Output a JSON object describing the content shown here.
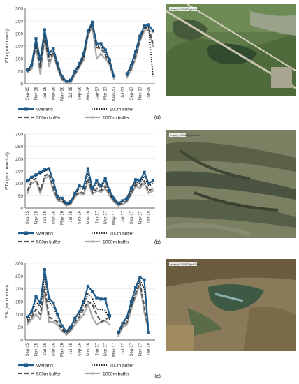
{
  "colors": {
    "wetland": "#1f5b8a",
    "buffer100": "#111111",
    "buffer500": "#555555",
    "buffer1000": "#a8a8a8",
    "axis": "#333333",
    "grid": "#e3e3e3"
  },
  "legend_labels": {
    "wetland": "Wetland",
    "b100": "100m buffer",
    "b500": "500m buffer",
    "b1000": "1000m buffer"
  },
  "photos": [
    {
      "label": "Imagery ©2018 DigitalGlobe"
    },
    {
      "label": "Imagery ©2018 DigitalGlobe"
    },
    {
      "label": "Imagery ©2018 DigitalGlobe"
    }
  ],
  "chart_data": [
    {
      "type": "line",
      "panel_label": "(a)",
      "ylabel": "ETa (mm/month)",
      "ylim": [
        0,
        300
      ],
      "yticks": [
        0,
        50,
        100,
        150,
        200,
        250,
        300
      ],
      "x": [
        "Sep-15",
        "Oct-15",
        "Nov-15",
        "Dec-15",
        "Jan-16",
        "Feb-16",
        "Mar-16",
        "Apr-16",
        "May-16",
        "Jun-16",
        "Jul-16",
        "Aug-16",
        "Sep-16",
        "Oct-16",
        "Nov-16",
        "Dec-16",
        "Jan-17",
        "Feb-17",
        "Mar-17",
        "Apr-17",
        "May-17",
        "Jun-17",
        "Jul-17",
        "Aug-17",
        "Sep-17",
        "Oct-17",
        "Nov-17",
        "Dec-17",
        "Jan-18",
        "Feb-18"
      ],
      "xtick_labels": [
        "Sep-15",
        "Nov-15",
        "Jan-16",
        "Mar-16",
        "May-16",
        "Jul-16",
        "Sep-16",
        "Nov-16",
        "Jan-17",
        "Mar-17",
        "May-17",
        "Jul-17",
        "Sep-17",
        "Nov-17",
        "Jan-18"
      ],
      "series": [
        {
          "name": "Wetland",
          "key": "wetland",
          "values": [
            55,
            75,
            180,
            95,
            215,
            120,
            140,
            80,
            30,
            10,
            15,
            50,
            80,
            120,
            210,
            245,
            160,
            160,
            135,
            95,
            30,
            null,
            null,
            40,
            75,
            130,
            190,
            230,
            235,
            210
          ]
        },
        {
          "name": "100m buffer",
          "key": "b100",
          "values": [
            50,
            70,
            165,
            80,
            195,
            105,
            130,
            70,
            25,
            10,
            10,
            45,
            75,
            110,
            200,
            240,
            150,
            150,
            120,
            85,
            25,
            null,
            null,
            35,
            65,
            120,
            180,
            220,
            230,
            30
          ]
        },
        {
          "name": "500m buffer",
          "key": "b500",
          "values": [
            48,
            65,
            160,
            60,
            190,
            90,
            125,
            65,
            20,
            8,
            10,
            40,
            70,
            100,
            195,
            235,
            145,
            140,
            115,
            80,
            25,
            null,
            null,
            30,
            60,
            110,
            175,
            220,
            225,
            160
          ]
        },
        {
          "name": "1000m buffer",
          "key": "b1000",
          "values": [
            45,
            60,
            150,
            40,
            180,
            70,
            120,
            60,
            15,
            5,
            5,
            35,
            65,
            95,
            190,
            230,
            100,
            120,
            100,
            75,
            20,
            null,
            null,
            25,
            55,
            100,
            170,
            210,
            215,
            150
          ]
        }
      ]
    },
    {
      "type": "line",
      "panel_label": "(b)",
      "ylabel": "ETa (mm month-1)",
      "ylim": [
        0,
        300
      ],
      "yticks": [
        0,
        50,
        100,
        150,
        200,
        250,
        300
      ],
      "x": [
        "Sep-15",
        "Oct-15",
        "Nov-15",
        "Dec-15",
        "Jan-16",
        "Feb-16",
        "Mar-16",
        "Apr-16",
        "May-16",
        "Jun-16",
        "Jul-16",
        "Aug-16",
        "Sep-16",
        "Oct-16",
        "Nov-16",
        "Dec-16",
        "Jan-17",
        "Feb-17",
        "Mar-17",
        "Apr-17",
        "May-17",
        "Jun-17",
        "Jul-17",
        "Aug-17",
        "Sep-17",
        "Oct-17",
        "Nov-17",
        "Dec-17",
        "Jan-18",
        "Feb-18"
      ],
      "xtick_labels": [
        "Sep-15",
        "Nov-15",
        "Jan-16",
        "Mar-16",
        "May-16",
        "Jul-16",
        "Sep-16",
        "Nov-16",
        "Jan-17",
        "Mar-17",
        "May-17",
        "Jul-17",
        "Sep-17",
        "Nov-17",
        "Jan-18"
      ],
      "series": [
        {
          "name": "Wetland",
          "key": "wetland",
          "values": [
            110,
            125,
            135,
            145,
            155,
            160,
            110,
            45,
            40,
            20,
            25,
            60,
            90,
            85,
            160,
            80,
            110,
            90,
            120,
            70,
            40,
            20,
            30,
            40,
            80,
            115,
            110,
            145,
            100,
            110
          ]
        },
        {
          "name": "100m buffer",
          "key": "b100",
          "values": [
            105,
            120,
            130,
            140,
            150,
            155,
            100,
            40,
            35,
            15,
            20,
            55,
            80,
            75,
            140,
            70,
            100,
            80,
            110,
            60,
            35,
            15,
            25,
            35,
            70,
            105,
            100,
            130,
            90,
            100
          ]
        },
        {
          "name": "500m buffer",
          "key": "b500",
          "values": [
            70,
            110,
            120,
            70,
            130,
            140,
            80,
            35,
            30,
            15,
            20,
            50,
            65,
            60,
            120,
            60,
            80,
            70,
            90,
            55,
            30,
            15,
            20,
            30,
            60,
            95,
            90,
            110,
            70,
            80
          ]
        },
        {
          "name": "1000m buffer",
          "key": "b1000",
          "values": [
            60,
            100,
            110,
            60,
            120,
            130,
            70,
            30,
            25,
            10,
            15,
            45,
            60,
            55,
            110,
            55,
            70,
            65,
            80,
            50,
            25,
            10,
            15,
            25,
            55,
            90,
            80,
            100,
            60,
            70
          ]
        }
      ]
    },
    {
      "type": "line",
      "panel_label": "(c)",
      "ylabel": "ETa (mm/month)",
      "ylim": [
        0,
        300
      ],
      "yticks": [
        0,
        50,
        100,
        150,
        200,
        250,
        300
      ],
      "x": [
        "Sep-15",
        "Oct-15",
        "Nov-15",
        "Dec-15",
        "Jan-16",
        "Feb-16",
        "Mar-16",
        "Apr-16",
        "May-16",
        "Jun-16",
        "Jul-16",
        "Aug-16",
        "Sep-16",
        "Oct-16",
        "Nov-16",
        "Dec-16",
        "Jan-17",
        "Feb-17",
        "Mar-17",
        "Apr-17",
        "May-17",
        "Jun-17",
        "Jul-17",
        "Aug-17",
        "Sep-17",
        "Oct-17",
        "Nov-17",
        "Dec-17",
        "Jan-18",
        "Feb-18"
      ],
      "xtick_labels": [
        "Sep-15",
        "Nov-15",
        "Jan-16",
        "Mar-16",
        "May-16",
        "Jul-16",
        "Sep-16",
        "Nov-16",
        "Jan-17",
        "Mar-17",
        "May-17",
        "Jul-17",
        "Sep-17",
        "Nov-17",
        "Jan-18"
      ],
      "series": [
        {
          "name": "Wetland",
          "key": "wetland",
          "values": [
            90,
            110,
            170,
            145,
            275,
            165,
            145,
            100,
            55,
            35,
            50,
            85,
            110,
            150,
            210,
            190,
            165,
            160,
            160,
            95,
            null,
            30,
            65,
            90,
            150,
            205,
            245,
            235,
            30,
            null
          ]
        },
        {
          "name": "100m buffer",
          "key": "b100",
          "values": [
            80,
            100,
            150,
            130,
            250,
            150,
            130,
            90,
            45,
            30,
            45,
            80,
            100,
            140,
            180,
            165,
            120,
            120,
            115,
            80,
            null,
            25,
            60,
            80,
            140,
            190,
            235,
            200,
            45,
            null
          ]
        },
        {
          "name": "500m buffer",
          "key": "b500",
          "values": [
            70,
            90,
            120,
            100,
            210,
            90,
            80,
            70,
            40,
            25,
            40,
            70,
            90,
            120,
            150,
            140,
            100,
            70,
            80,
            90,
            null,
            20,
            55,
            70,
            130,
            180,
            225,
            130,
            40,
            null
          ]
        },
        {
          "name": "1000m buffer",
          "key": "b1000",
          "values": [
            60,
            80,
            100,
            80,
            190,
            70,
            70,
            60,
            35,
            20,
            35,
            60,
            80,
            100,
            140,
            90,
            60,
            70,
            75,
            60,
            null,
            15,
            50,
            60,
            120,
            170,
            215,
            110,
            35,
            null
          ]
        }
      ]
    }
  ]
}
